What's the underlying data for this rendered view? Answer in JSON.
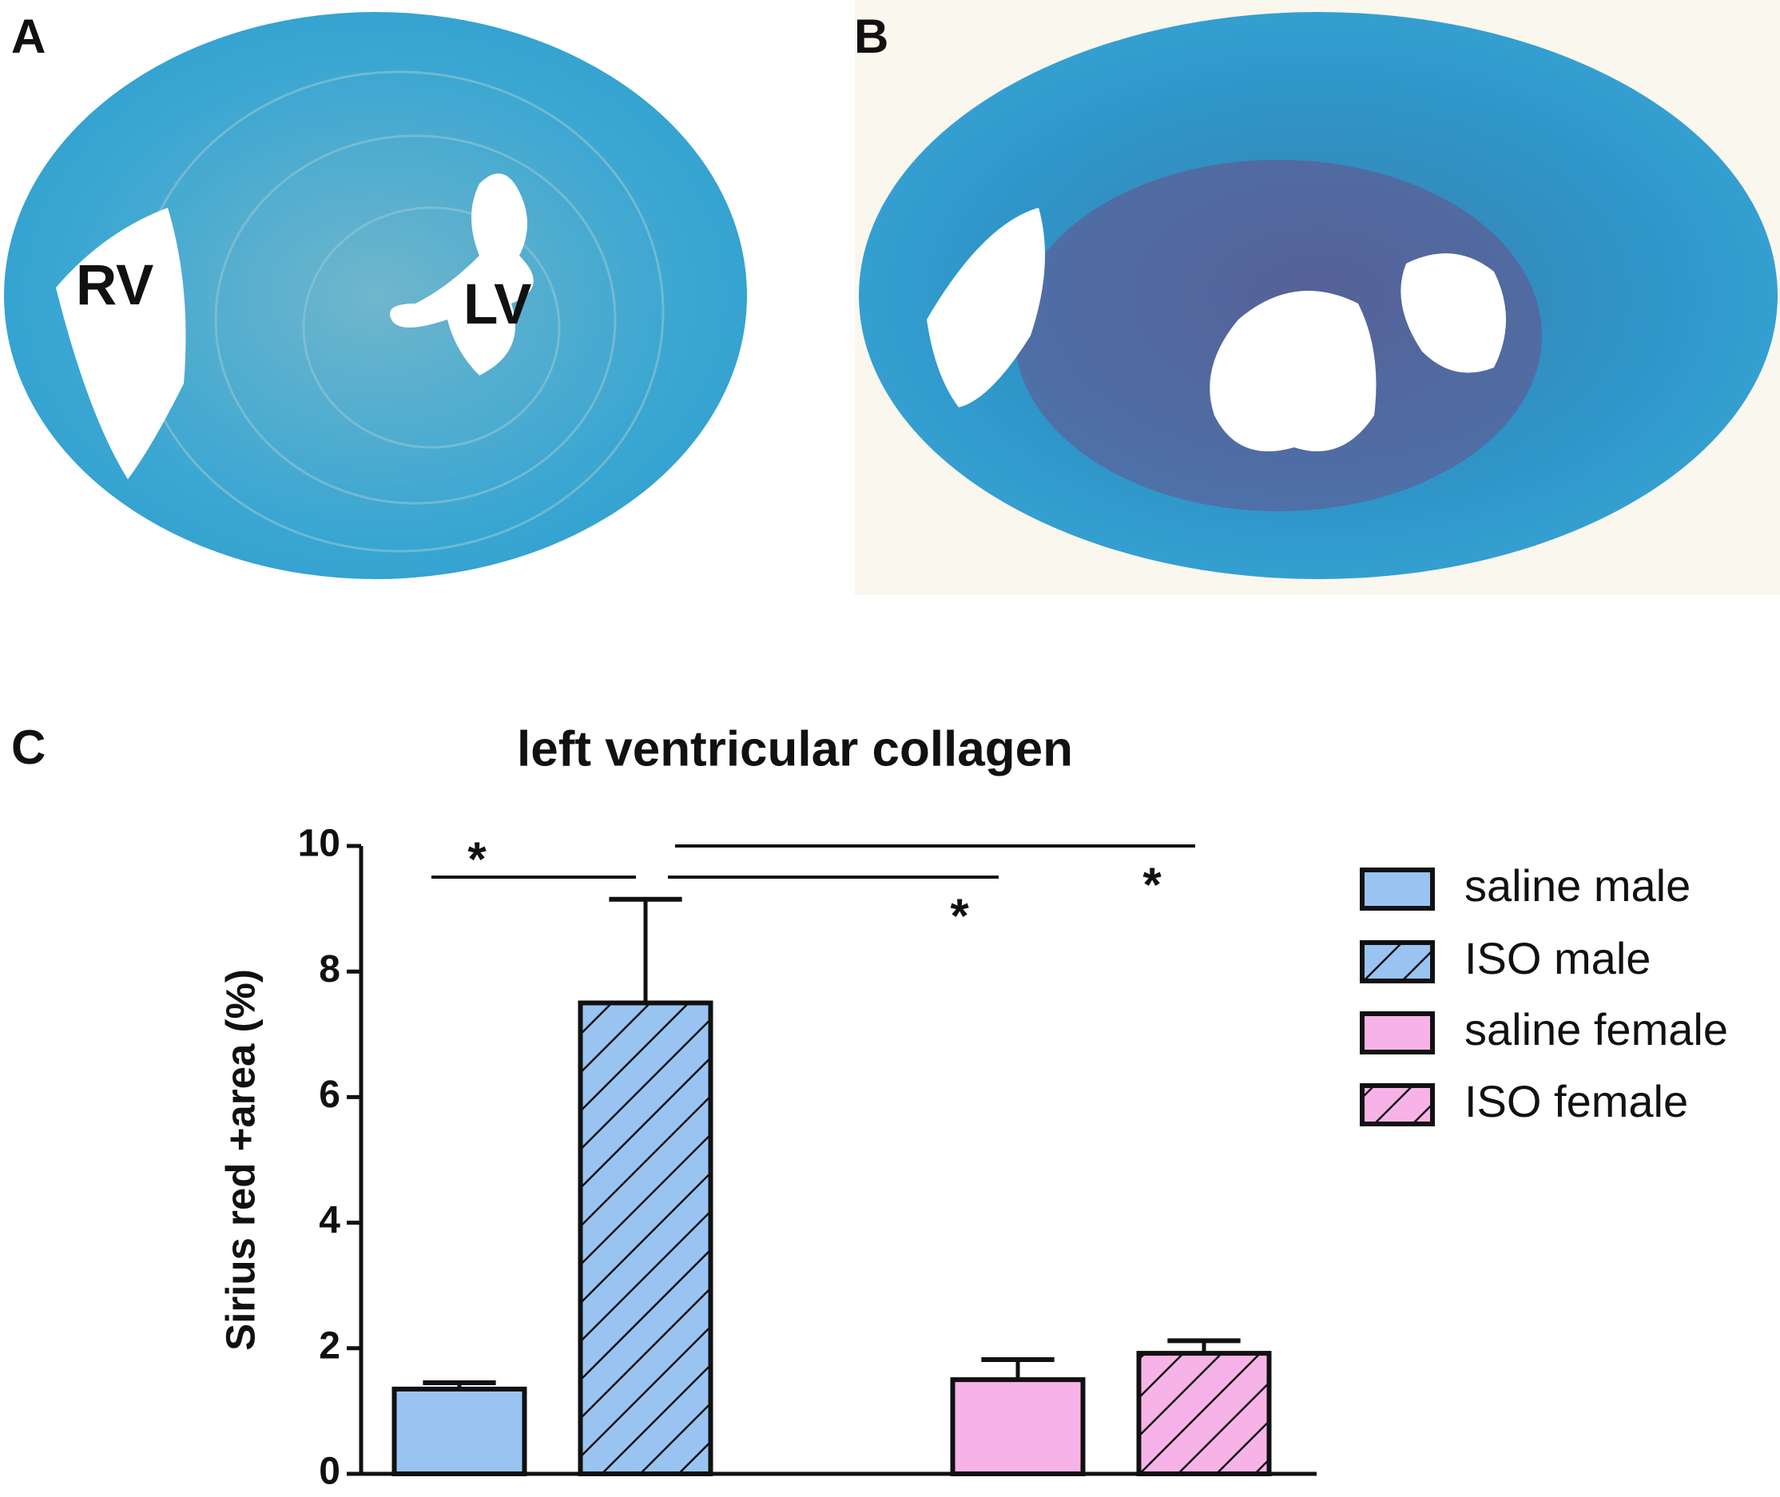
{
  "panel_labels": [
    "A",
    "B",
    "C"
  ],
  "image_labels": [
    "RV",
    "LV"
  ],
  "chart_data": {
    "type": "bar",
    "title": "left ventricular collagen",
    "y_label": "Sirius red +area (%)",
    "categories": [
      null,
      null,
      null,
      null,
      null
    ],
    "ylim": [
      0,
      10
    ],
    "yticks": [
      0,
      2,
      4,
      6,
      8,
      10
    ],
    "series": [
      {
        "name": "saline male",
        "color": "#99c4f2",
        "hatch": false,
        "values": [
          1.35,
          null,
          null,
          null,
          null
        ],
        "errors": [
          0.1,
          null,
          null,
          null,
          null
        ]
      },
      {
        "name": "ISO male",
        "color": "#99c4f2",
        "hatch": true,
        "values": [
          null,
          7.5,
          null,
          null,
          null
        ],
        "errors": [
          null,
          1.65,
          null,
          null,
          null
        ]
      },
      {
        "name": "saline female",
        "color": "#f7b3e8",
        "hatch": false,
        "values": [
          null,
          null,
          null,
          1.5,
          null
        ],
        "errors": [
          null,
          null,
          null,
          0.32,
          null
        ]
      },
      {
        "name": "ISO female",
        "color": "#f7b3e8",
        "hatch": true,
        "values": [
          null,
          null,
          null,
          null,
          1.92
        ],
        "errors": [
          null,
          null,
          null,
          null,
          0.2
        ]
      }
    ],
    "significance": [
      {
        "between": [
          0,
          1
        ],
        "label": "*"
      },
      {
        "between": [
          1,
          3
        ],
        "label": "*"
      },
      {
        "between": [
          1,
          4
        ],
        "label": "*"
      }
    ]
  }
}
